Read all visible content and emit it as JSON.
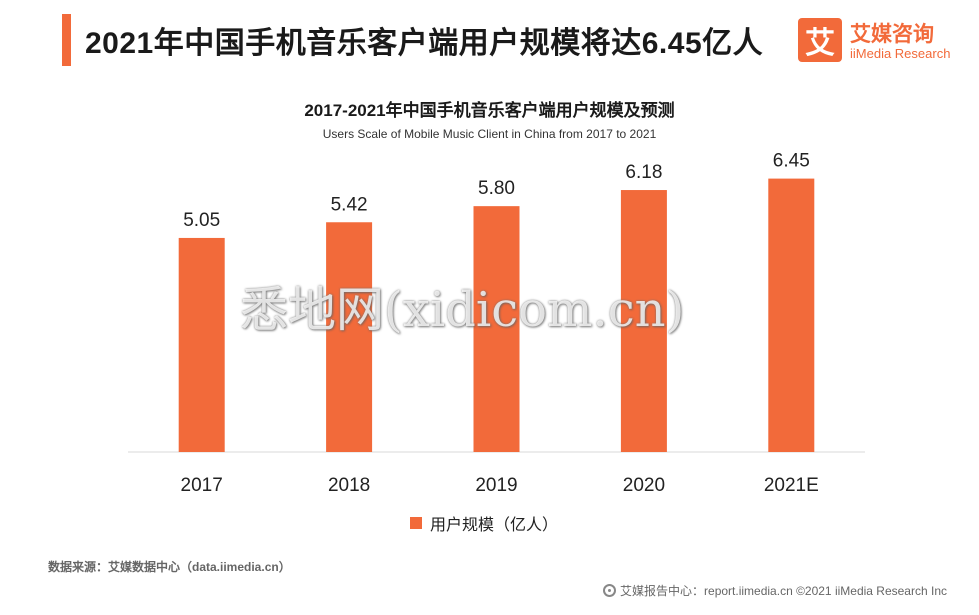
{
  "header": {
    "title": "2021年中国手机音乐客户端用户规模将达6.45亿人",
    "logo_mark": "艾",
    "logo_cn": "艾媒咨询",
    "logo_en": "iiMedia Research"
  },
  "colors": {
    "accent": "#f26a3a",
    "bar": "#f26a3a",
    "axis": "#d9d9d9"
  },
  "chart_data": {
    "type": "bar",
    "title": "2017-2021年中国手机音乐客户端用户规模及预测",
    "subtitle": "Users Scale of Mobile Music Client  in China from 2017 to 2021",
    "categories": [
      "2017",
      "2018",
      "2019",
      "2020",
      "2021E"
    ],
    "series": [
      {
        "name": "用户规模（亿人）",
        "values": [
          5.05,
          5.42,
          5.8,
          6.18,
          6.45
        ]
      }
    ],
    "value_labels": [
      "5.05",
      "5.42",
      "5.80",
      "6.18",
      "6.45"
    ],
    "xlabel": "",
    "ylabel": "",
    "ylim": [
      0,
      6.7
    ],
    "grid": false,
    "legend": "bottom-center"
  },
  "watermark": "悉地网(xidicom.cn)",
  "source": "数据来源：艾媒数据中心（data.iimedia.cn）",
  "footer": "艾媒报告中心：report.iimedia.cn ©2021  iiMedia Research  Inc"
}
